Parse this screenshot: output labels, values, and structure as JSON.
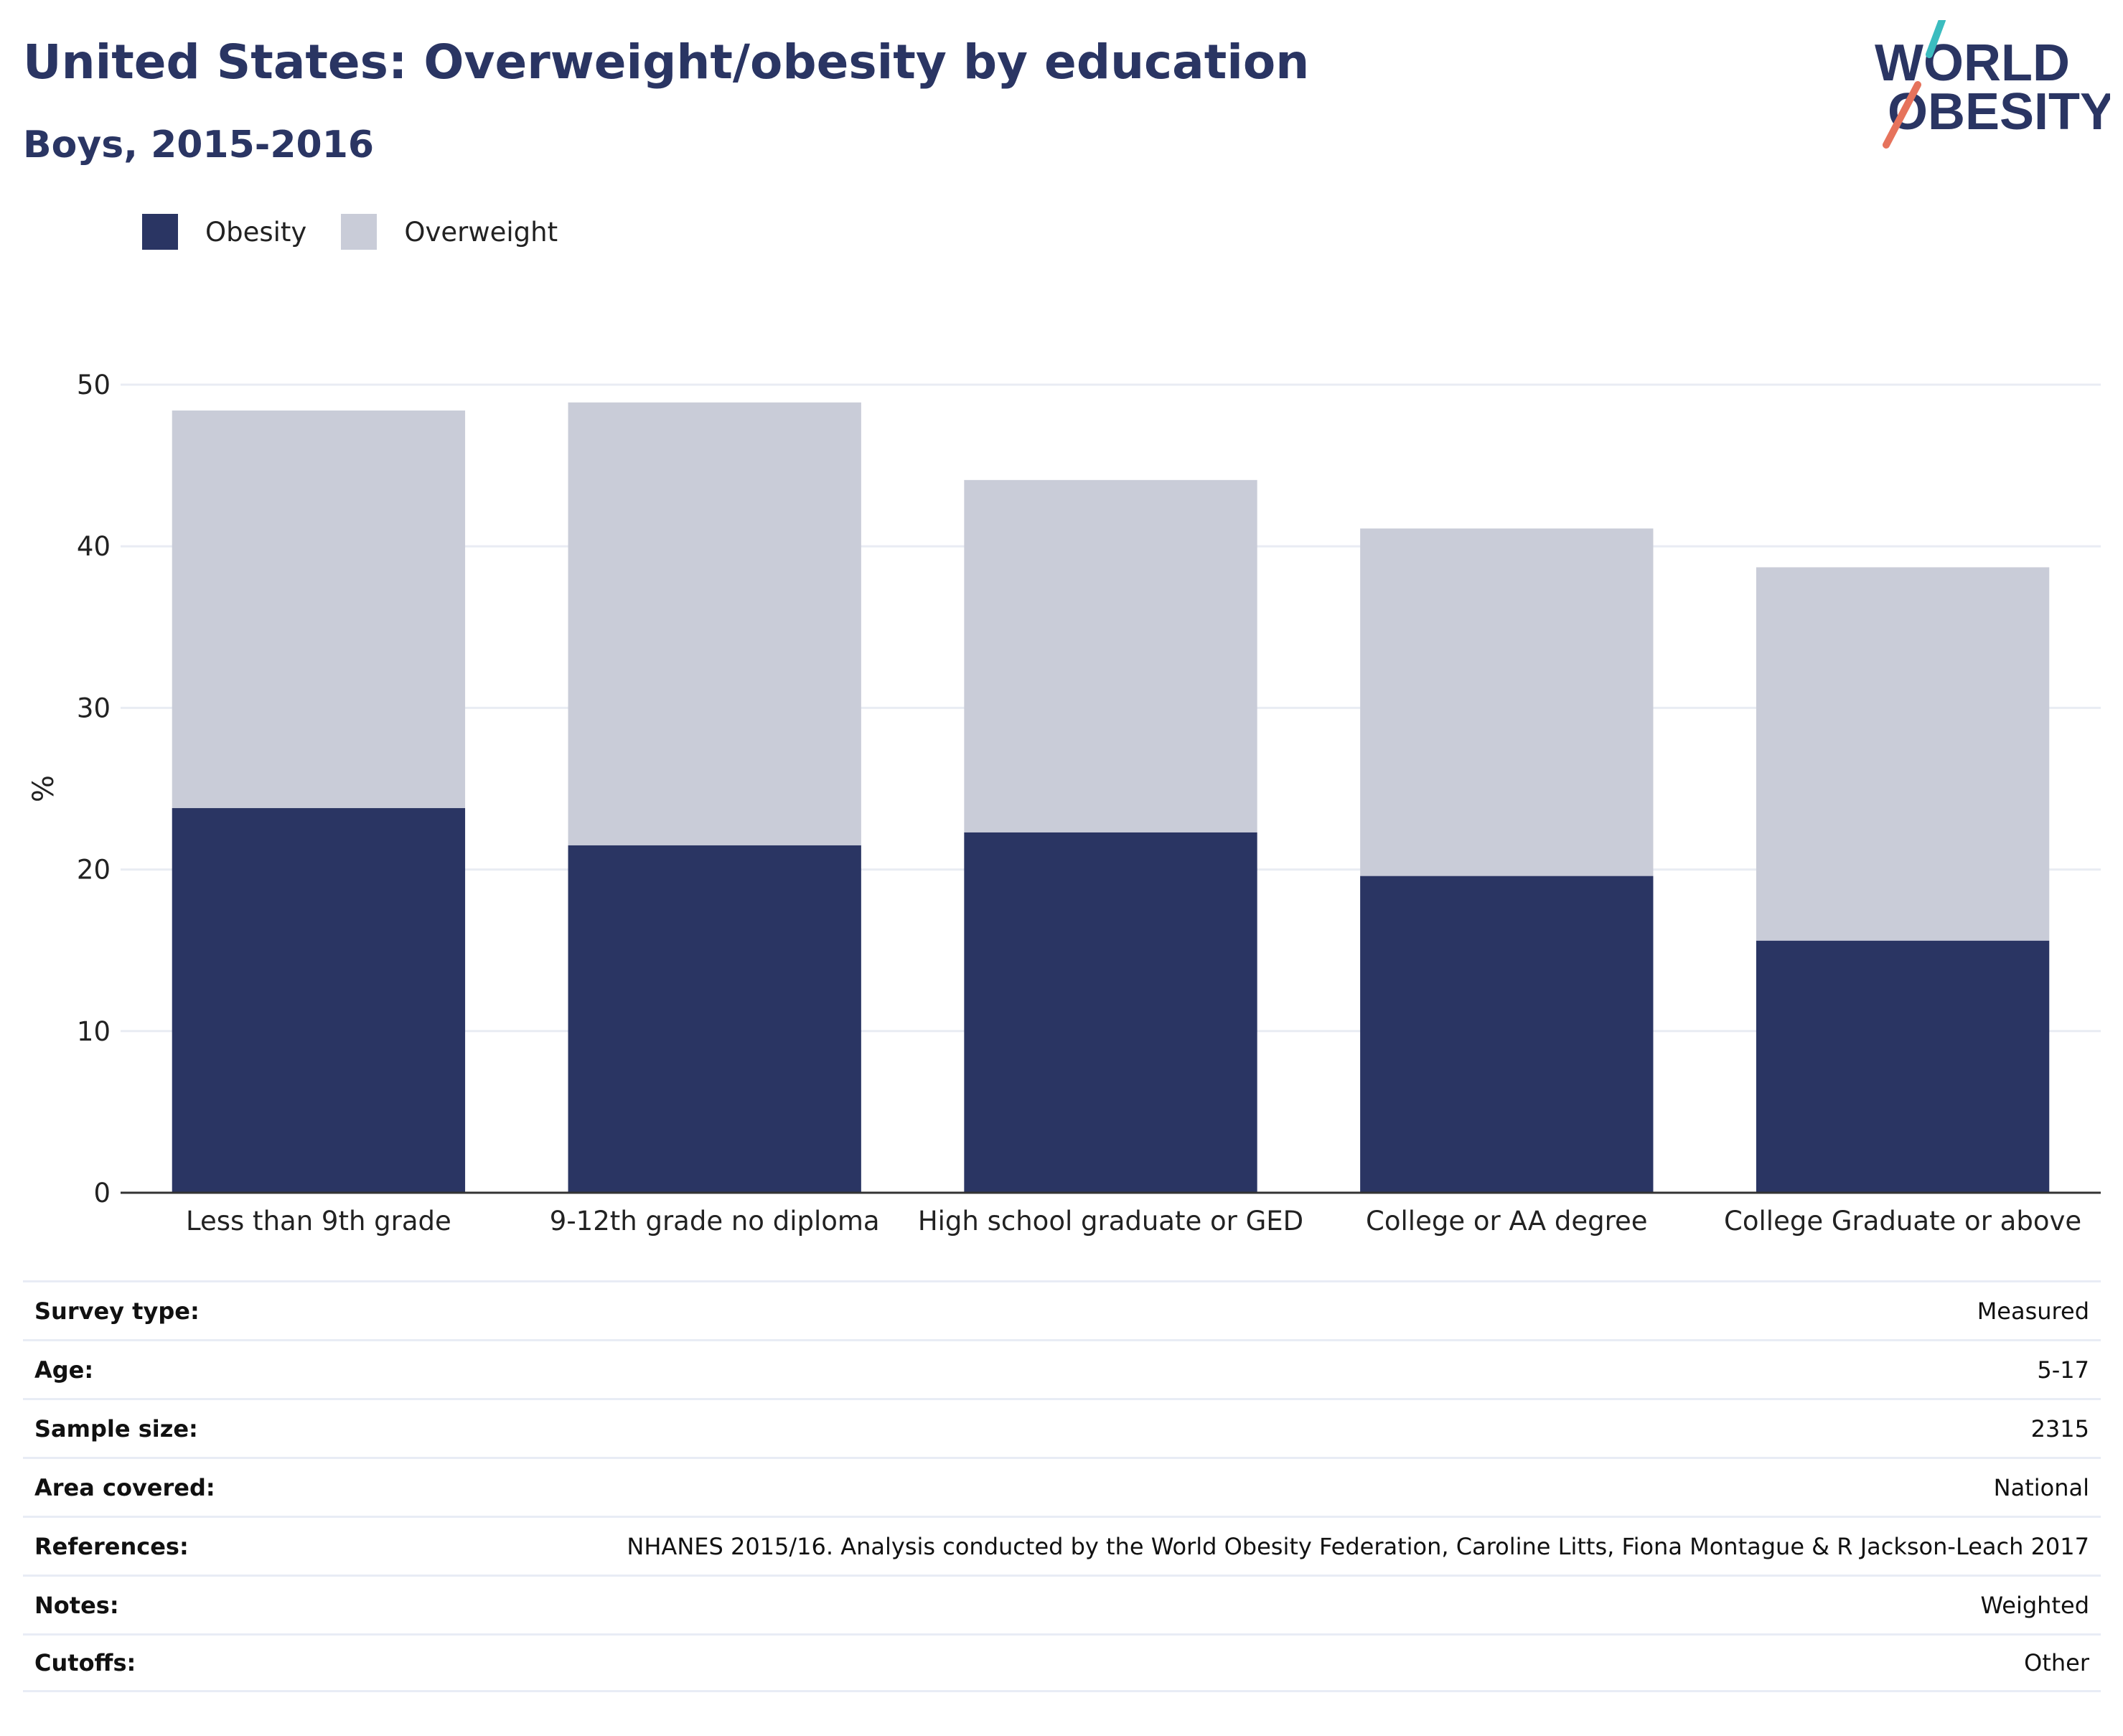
{
  "header": {
    "title": "United States: Overweight/obesity by education",
    "subtitle": "Boys, 2015-2016"
  },
  "logo": {
    "line1": "WORLD",
    "line2": "OBESITY"
  },
  "colors": {
    "obesity": "#2a3563",
    "overweight": "#c9ccd8",
    "accent_teal": "#3bbcbf",
    "accent_coral": "#e6735c",
    "grid": "#e9ecf3"
  },
  "chart_data": {
    "type": "bar",
    "stacked": true,
    "categories": [
      "Less than 9th grade",
      "9-12th grade no diploma",
      "High school graduate or GED",
      "College or AA degree",
      "College Graduate or above"
    ],
    "series": [
      {
        "name": "Obesity",
        "values": [
          23.8,
          21.5,
          22.3,
          19.6,
          15.6
        ]
      },
      {
        "name": "Overweight",
        "values": [
          24.6,
          27.4,
          21.8,
          21.5,
          23.1
        ]
      }
    ],
    "ylabel": "%",
    "ylim": [
      0,
      50
    ],
    "yticks": [
      0,
      10,
      20,
      30,
      40,
      50
    ],
    "grid": true,
    "legend": "top-left"
  },
  "meta": [
    {
      "label": "Survey type:",
      "value": "Measured"
    },
    {
      "label": "Age:",
      "value": "5-17"
    },
    {
      "label": "Sample size:",
      "value": "2315"
    },
    {
      "label": "Area covered:",
      "value": "National"
    },
    {
      "label": "References:",
      "value": "NHANES 2015/16. Analysis conducted by the World Obesity Federation, Caroline Litts, Fiona Montague & R Jackson-Leach 2017"
    },
    {
      "label": "Notes:",
      "value": "Weighted"
    },
    {
      "label": "Cutoffs:",
      "value": "Other"
    }
  ]
}
